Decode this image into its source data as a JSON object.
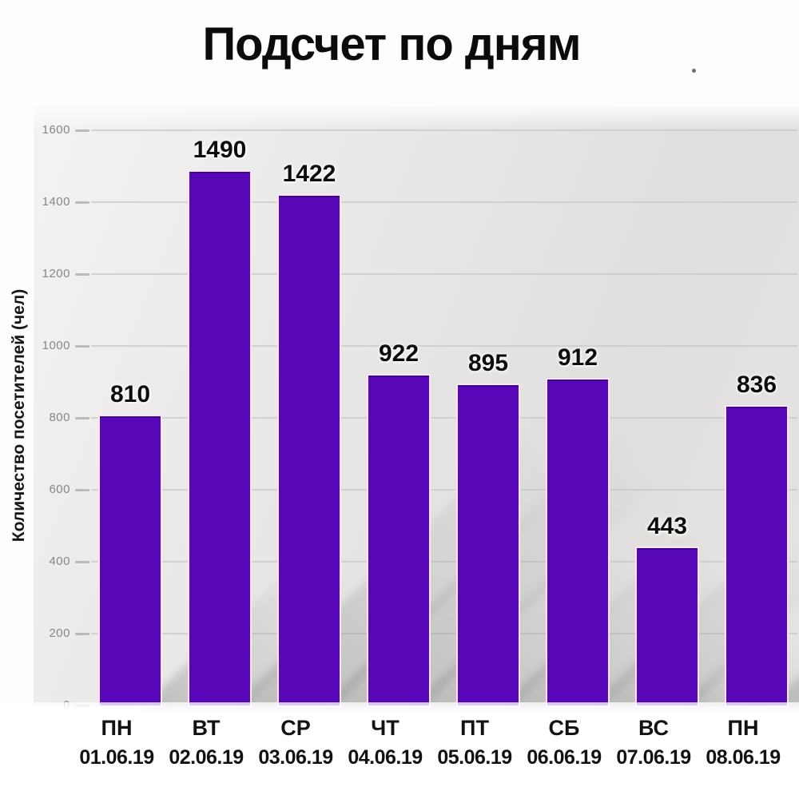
{
  "title": "Подсчет по дням",
  "chart_data": {
    "type": "bar",
    "title": "Подсчет по дням",
    "categories": [
      "ПН",
      "ВТ",
      "СР",
      "ЧТ",
      "ПТ",
      "СБ",
      "ВС",
      "ПН"
    ],
    "dates": [
      "01.06.19",
      "02.06.19",
      "03.06.19",
      "04.06.19",
      "05.06.19",
      "06.06.19",
      "07.06.19",
      "08.06.19"
    ],
    "values": [
      810,
      1490,
      1422,
      922,
      895,
      912,
      443,
      836
    ],
    "xlabel": "",
    "ylabel": "Количество посетителей (чел)",
    "ylim": [
      0,
      1600
    ],
    "ytick_step": 200,
    "yticks": [
      0,
      200,
      400,
      600,
      800,
      1000,
      1200,
      1400,
      1600
    ],
    "grid": true,
    "legend": false,
    "value_labels": true,
    "bar_color": "#5707b8",
    "bar_outline_color": "#f4e9f8",
    "grid_color": "#c9c8c6",
    "tick_label_color": "#878685",
    "value_label_color": "#0d0d0d",
    "background_color": "#e7e5e3",
    "shadow_color": "#6e6e6e"
  }
}
